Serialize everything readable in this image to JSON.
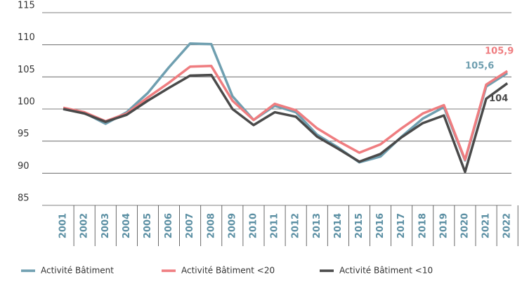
{
  "chart_data": {
    "type": "line",
    "categories": [
      "2001",
      "2002",
      "2003",
      "2004",
      "2005",
      "2006",
      "2007",
      "2008",
      "2009",
      "2010",
      "2011",
      "2012",
      "2013",
      "2014",
      "2015",
      "2016",
      "2017",
      "2018",
      "2019",
      "2020",
      "2021",
      "2022"
    ],
    "ylim": [
      85,
      115
    ],
    "yticks": [
      85,
      90,
      95,
      100,
      105,
      110,
      115
    ],
    "grid": true,
    "series": [
      {
        "name": "Activité Bâtiment",
        "color": "#6f9fb0",
        "values": [
          100,
          99.4,
          97.7,
          99.5,
          102.5,
          106.5,
          110.2,
          110.1,
          102,
          98.3,
          100.5,
          99.5,
          96,
          94,
          91.7,
          92.6,
          95.7,
          98.5,
          100.3,
          92,
          103.5,
          105.6
        ],
        "value_labels": [
          null,
          null,
          null,
          null,
          null,
          null,
          null,
          null,
          null,
          null,
          null,
          null,
          null,
          null,
          null,
          null,
          null,
          null,
          null,
          null,
          null,
          "105,6"
        ]
      },
      {
        "name": "Activité Bâtiment <20",
        "color": "#ef7d80",
        "values": [
          100.2,
          99.5,
          98.1,
          99.3,
          101.8,
          104.1,
          106.6,
          106.7,
          101.3,
          98.3,
          100.8,
          99.8,
          97,
          95,
          93.2,
          94.5,
          97,
          99.3,
          100.6,
          92.1,
          103.8,
          105.9
        ],
        "value_labels": [
          null,
          null,
          null,
          null,
          null,
          null,
          null,
          null,
          null,
          null,
          null,
          null,
          null,
          null,
          null,
          null,
          null,
          null,
          null,
          null,
          null,
          "105,9"
        ]
      },
      {
        "name": "Activité Bâtiment <10",
        "color": "#4a4a4a",
        "values": [
          100,
          99.3,
          98,
          99.1,
          101.3,
          103.3,
          105.2,
          105.3,
          100,
          97.5,
          99.5,
          98.8,
          95.7,
          93.8,
          91.8,
          93,
          95.6,
          97.8,
          99,
          90.2,
          101.6,
          104
        ],
        "value_labels": [
          null,
          null,
          null,
          null,
          null,
          null,
          null,
          null,
          null,
          null,
          null,
          null,
          null,
          null,
          null,
          null,
          null,
          null,
          null,
          null,
          null,
          "104"
        ]
      }
    ]
  }
}
